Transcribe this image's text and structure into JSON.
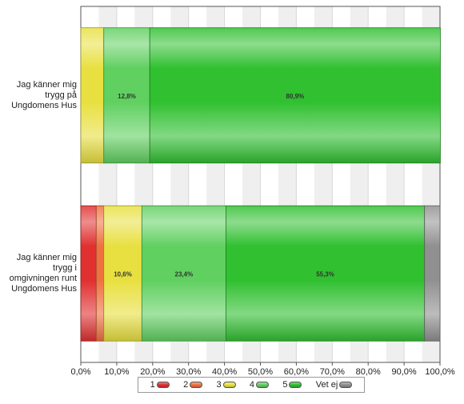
{
  "chart_data": {
    "type": "bar",
    "orientation": "horizontal",
    "stacked": true,
    "categories": [
      [
        "Jag känner mig",
        "trygg på",
        "Ungdomens Hus"
      ],
      [
        "Jag känner mig",
        "trygg i",
        "omgivningen runt",
        "Ungdomens Hus"
      ]
    ],
    "series": [
      {
        "name": "1",
        "color": "#e03030",
        "values": [
          0,
          4.3
        ]
      },
      {
        "name": "2",
        "color": "#f07040",
        "values": [
          0,
          2.1
        ]
      },
      {
        "name": "3",
        "color": "#e8e040",
        "values": [
          6.4,
          10.6
        ]
      },
      {
        "name": "4",
        "color": "#60d060",
        "values": [
          12.8,
          23.4
        ]
      },
      {
        "name": "5",
        "color": "#30c030",
        "values": [
          80.9,
          55.3
        ]
      },
      {
        "name": "Vet ej",
        "color": "#909090",
        "values": [
          0,
          4.3
        ]
      }
    ],
    "data_labels": [
      [
        null,
        null,
        null,
        "12,8%",
        "80,9%",
        null
      ],
      [
        null,
        null,
        "10,6%",
        "23,4%",
        "55,3%",
        null
      ]
    ],
    "xlim": [
      0,
      100
    ],
    "x_ticks": [
      "0,0%",
      "10,0%",
      "20,0%",
      "30,0%",
      "40,0%",
      "50,0%",
      "60,0%",
      "70,0%",
      "80,0%",
      "90,0%",
      "100,0%"
    ],
    "grid": true,
    "legend_position": "bottom",
    "title": "",
    "xlabel": "",
    "ylabel": ""
  }
}
